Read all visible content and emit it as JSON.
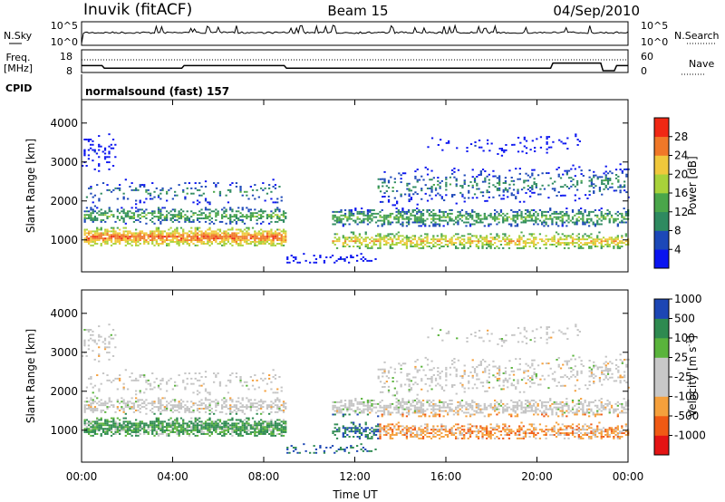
{
  "header": {
    "station": "Inuvik (fitACF)",
    "beam": "Beam 15",
    "date": "04/Sep/2010"
  },
  "nsky_panel": {
    "left_label": "N.Sky",
    "right_label": "N.Search",
    "y_ticks": [
      "10^5",
      "10^0"
    ],
    "right_ticks": [
      "10^5",
      "10^0"
    ]
  },
  "freq_panel": {
    "left_label_1": "Freq.",
    "left_label_2": "[MHz]",
    "left_ticks": [
      "18",
      "8"
    ],
    "right_ticks": [
      "60",
      "0"
    ],
    "right_label": "Nave"
  },
  "cpid": {
    "label": "CPID",
    "program": "normalsound (fast) 157"
  },
  "colors": {
    "power_scale": [
      "#0a14f0",
      "#1c48b8",
      "#2e8a60",
      "#4aa64a",
      "#a8d23a",
      "#f0c83c",
      "#f07828",
      "#f02814"
    ],
    "velocity_scale": [
      "#e41414",
      "#f05a14",
      "#f5a03c",
      "#c8c8c8",
      "#c8c8c8",
      "#5ab43c",
      "#2e8a50",
      "#1c46b4"
    ],
    "velocity_scatter_main": "#c4c4c4"
  },
  "chart_data": [
    {
      "type": "heatmap",
      "name": "power-panel",
      "xlabel": "",
      "ylabel": "Slant Range [km]",
      "x_ticks": [
        "00:00",
        "04:00",
        "08:00",
        "12:00",
        "16:00",
        "20:00",
        "00:00"
      ],
      "x_range_hours": [
        0,
        24
      ],
      "y_ticks": [
        1000,
        2000,
        3000,
        4000
      ],
      "y_range_km": [
        180,
        4600
      ],
      "colorbar": {
        "label": "Power [dB]",
        "tick_labels": [
          "4",
          "8",
          "12",
          "16",
          "20",
          "24",
          "28"
        ]
      }
    },
    {
      "type": "heatmap",
      "name": "velocity-panel",
      "xlabel": "Time UT",
      "ylabel": "Slant Range [km]",
      "x_ticks": [
        "00:00",
        "04:00",
        "08:00",
        "12:00",
        "16:00",
        "20:00",
        "00:00"
      ],
      "x_range_hours": [
        0,
        24
      ],
      "y_ticks": [
        1000,
        2000,
        3000,
        4000
      ],
      "y_range_km": [
        180,
        4600
      ],
      "colorbar": {
        "label": "Velocity [m s",
        "label_sup": "-1",
        "label_end": "]",
        "tick_labels": [
          "-1000",
          "-500",
          "-100",
          "-25",
          "25",
          "100",
          "500",
          "1000"
        ]
      }
    },
    {
      "type": "line",
      "name": "frequency-trace",
      "x_hours": [
        0,
        0.9,
        1.0,
        4.4,
        4.5,
        8.9,
        9.0,
        20.6,
        20.7,
        22.8,
        22.9,
        23.4,
        23.5,
        24
      ],
      "values_mhz": [
        12,
        12,
        10,
        10,
        12,
        12,
        10,
        10,
        14,
        14,
        8,
        8,
        12,
        12
      ]
    }
  ]
}
